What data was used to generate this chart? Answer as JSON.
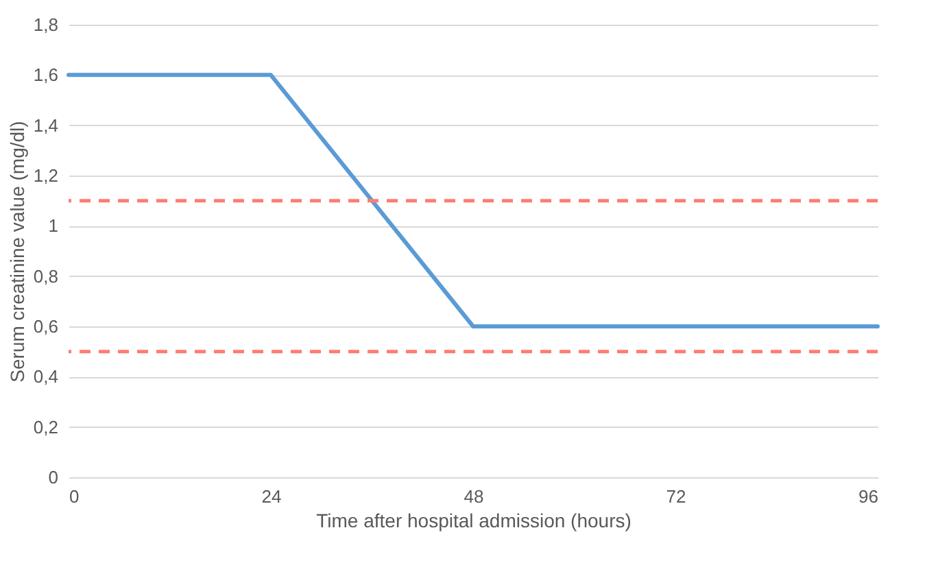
{
  "chart_data": {
    "type": "line",
    "xlabel": "Time after hospital admission (hours)",
    "ylabel": "Serum creatinine value (mg/dl)",
    "x": [
      0,
      24,
      48,
      96
    ],
    "series": [
      {
        "color": "#5b9bd5",
        "values": [
          1.6,
          1.6,
          0.6,
          0.6
        ]
      }
    ],
    "xlim": [
      0,
      96
    ],
    "xticks": [
      0,
      24,
      48,
      72,
      96
    ],
    "ylim": [
      0,
      1.8
    ],
    "yticks": [
      0,
      {
        "value": 0.2,
        "label": "0,2"
      },
      {
        "value": 0.4,
        "label": "0,4"
      },
      {
        "value": 0.6,
        "label": "0,6"
      },
      {
        "value": 0.8,
        "label": "0,8"
      },
      1,
      {
        "value": 1.2,
        "label": "1,2"
      },
      {
        "value": 1.4,
        "label": "1,4"
      },
      {
        "value": 1.6,
        "label": "1,6"
      },
      {
        "value": 1.8,
        "label": "1,8"
      }
    ],
    "ref_lines": [
      {
        "axis": "y",
        "value": 1.1,
        "color": "#ff7c70",
        "line_style": "dashed"
      },
      {
        "axis": "y",
        "value": 0.5,
        "color": "#ff7c70",
        "line_style": "dashed"
      }
    ],
    "grid": "y"
  }
}
